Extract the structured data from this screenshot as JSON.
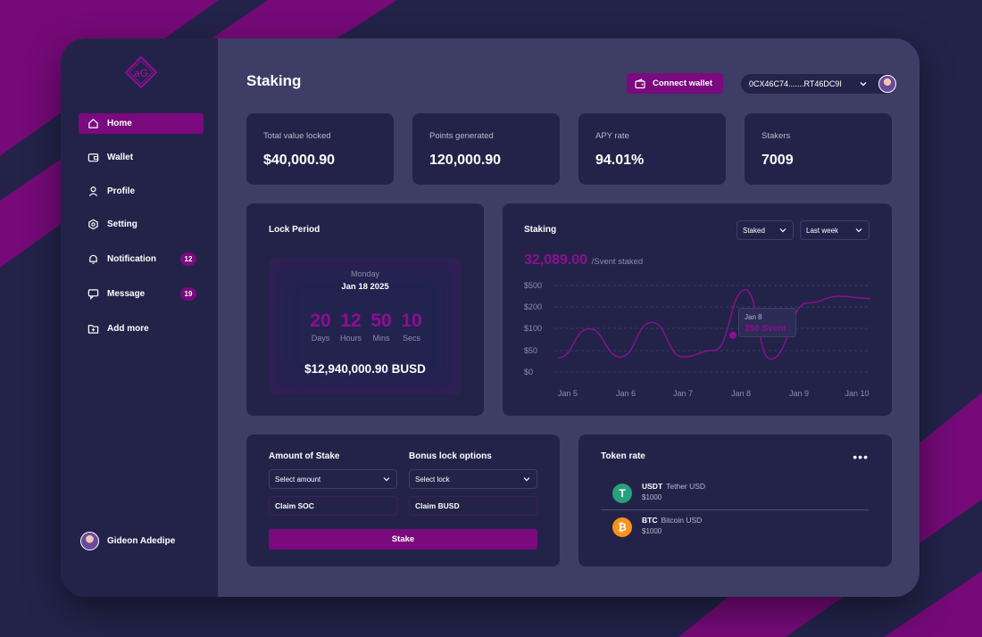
{
  "app": {
    "page_title": "Staking"
  },
  "sidebar": {
    "logo": "aG",
    "items": [
      {
        "label": "Home",
        "icon": "home-icon",
        "badge": null
      },
      {
        "label": "Wallet",
        "icon": "wallet-icon",
        "badge": null
      },
      {
        "label": "Profile",
        "icon": "profile-icon",
        "badge": null
      },
      {
        "label": "Setting",
        "icon": "settings-icon",
        "badge": null
      },
      {
        "label": "Notification",
        "icon": "bell-icon",
        "badge": "12"
      },
      {
        "label": "Message",
        "icon": "message-icon",
        "badge": "19"
      },
      {
        "label": "Add more",
        "icon": "add-folder-icon",
        "badge": null
      }
    ],
    "user_name": "Gideon Adedipe"
  },
  "header": {
    "connect_label": "Connect wallet",
    "address": "0CX46C74.......RT46DC9I"
  },
  "stats": [
    {
      "label": "Total value locked",
      "value": "$40,000.90"
    },
    {
      "label": "Points generated",
      "value": "120,000.90"
    },
    {
      "label": "APY rate",
      "value": "94.01%"
    },
    {
      "label": "Stakers",
      "value": "7009"
    }
  ],
  "lock": {
    "title": "Lock Period",
    "weekday": "Monday",
    "date": "Jan 18 2025",
    "countdown": [
      {
        "value": "20",
        "unit": "Days"
      },
      {
        "value": "12",
        "unit": "Hours"
      },
      {
        "value": "50",
        "unit": "Mins"
      },
      {
        "value": "10",
        "unit": "Secs"
      }
    ],
    "amount": "$12,940,000.90 BUSD"
  },
  "staking": {
    "title": "Staking",
    "filter_type": "Staked",
    "filter_period": "Last week",
    "total": "32,089.00",
    "total_suffix": "/Svent staked",
    "tooltip_date": "Jan 8",
    "tooltip_value": "250 Svent"
  },
  "chart_data": {
    "type": "line",
    "y_tick_labels": [
      "$500",
      "$200",
      "$100",
      "$50",
      "$0"
    ],
    "x_tick_labels": [
      "Jan 5",
      "Jan 6",
      "Jan 7",
      "Jan 8",
      "Jan 9",
      "Jan 10"
    ],
    "x": [
      5,
      5.5,
      6,
      6.5,
      7,
      7.5,
      8,
      8.4,
      9,
      9.5,
      10
    ],
    "y_level": [
      0.65,
      2.0,
      0.7,
      2.3,
      0.7,
      1.0,
      3.8,
      0.6,
      3.2,
      3.5,
      3.4
    ],
    "grid": true,
    "highlight": {
      "x": 8,
      "label_date": "Jan 8",
      "label_value": "250 Svent"
    },
    "color": "#8e0f92"
  },
  "stake_form": {
    "amount_title": "Amount of Stake",
    "bonus_title": "Bonus lock options",
    "amount_placeholder": "Select amount",
    "lock_placeholder": "Select lock",
    "claim_soc": "Claim SOC",
    "claim_busd": "Claim BUSD",
    "stake_label": "Stake"
  },
  "token_rate": {
    "title": "Token rate",
    "more": "•••",
    "tokens": [
      {
        "symbol": "USDT",
        "name": "Tether USD",
        "price": "$1000",
        "glyph": "T",
        "color": "#26a17b"
      },
      {
        "symbol": "BTC",
        "name": "Bitcoin USD",
        "price": "$1000",
        "glyph": "₿",
        "color": "#f7931a"
      }
    ]
  },
  "colors": {
    "accent": "#7a0a7e",
    "panel": "#23234a",
    "frame": "#3d3d66"
  }
}
